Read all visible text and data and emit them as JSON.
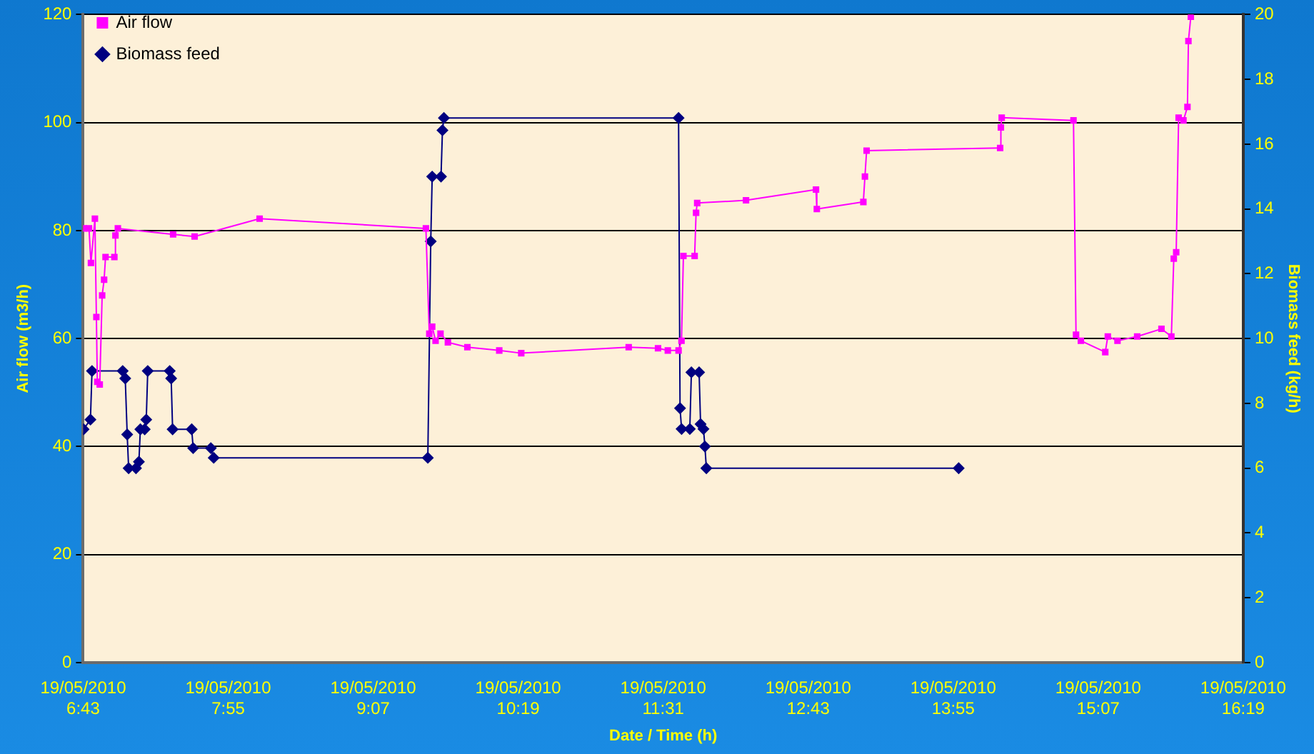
{
  "chart_data": {
    "type": "line",
    "xlabel": "Date / Time (h)",
    "ylabel": "Air flow (m3/h)",
    "y2label": "Biomass feed (kg/h)",
    "xlim": [
      "2010-05-19T06:43",
      "2010-05-19T16:19"
    ],
    "xticks": [
      {
        "value": "2010-05-19T06:43",
        "label": "19/05/2010 6:43"
      },
      {
        "value": "2010-05-19T07:55",
        "label": "19/05/2010 7:55"
      },
      {
        "value": "2010-05-19T09:07",
        "label": "19/05/2010 9:07"
      },
      {
        "value": "2010-05-19T10:19",
        "label": "19/05/2010 10:19"
      },
      {
        "value": "2010-05-19T11:31",
        "label": "19/05/2010 11:31"
      },
      {
        "value": "2010-05-19T12:43",
        "label": "19/05/2010 12:43"
      },
      {
        "value": "2010-05-19T13:55",
        "label": "19/05/2010 13:55"
      },
      {
        "value": "2010-05-19T15:07",
        "label": "19/05/2010 15:07"
      },
      {
        "value": "2010-05-19T16:19",
        "label": "19/05/2010 16:19"
      }
    ],
    "ylim": [
      0,
      120
    ],
    "yticks": [
      0,
      20,
      40,
      60,
      80,
      100,
      120
    ],
    "y2lim": [
      0,
      20
    ],
    "y2ticks": [
      0,
      2,
      4,
      6,
      8,
      10,
      12,
      14,
      16,
      18,
      20
    ],
    "grid": "y",
    "legend": "top left",
    "series": [
      {
        "name": "Air flow",
        "color": "#ff00ff",
        "marker": "square",
        "axis": "y",
        "x": [
          "2010-05-19T06:43:12",
          "2010-05-19T06:45:54",
          "2010-05-19T06:46:52",
          "2010-05-19T06:48:50",
          "2010-05-19T06:49:34",
          "2010-05-19T06:50:02",
          "2010-05-19T06:51:14",
          "2010-05-19T06:52:26",
          "2010-05-19T06:53:24",
          "2010-05-19T06:54:07",
          "2010-05-19T06:58:30",
          "2010-05-19T06:59:02",
          "2010-05-19T07:00:14",
          "2010-05-19T07:27:40",
          "2010-05-19T07:38:20",
          "2010-05-19T08:10:37",
          "2010-05-19T09:33:11",
          "2010-05-19T09:34:52",
          "2010-05-19T09:36:18",
          "2010-05-19T09:37:59",
          "2010-05-19T09:40:26",
          "2010-05-19T09:44:06",
          "2010-05-19T09:53:46",
          "2010-05-19T10:09:36",
          "2010-05-19T10:20:31",
          "2010-05-19T11:13:52",
          "2010-05-19T11:28:26",
          "2010-05-19T11:33:18",
          "2010-05-19T11:38:38",
          "2010-05-19T11:40:05",
          "2010-05-19T11:41:02",
          "2010-05-19T11:46:37",
          "2010-05-19T11:47:20",
          "2010-05-19T11:47:53",
          "2010-05-19T12:12:07",
          "2010-05-19T12:46:52",
          "2010-05-19T12:47:17",
          "2010-05-19T13:10:23",
          "2010-05-19T13:11:10",
          "2010-05-19T13:12:00",
          "2010-05-19T14:18:18",
          "2010-05-19T14:18:40",
          "2010-05-19T14:19:05",
          "2010-05-19T14:54:43",
          "2010-05-19T14:55:59",
          "2010-05-19T14:58:23",
          "2010-05-19T15:10:30",
          "2010-05-19T15:11:46",
          "2010-05-19T15:16:34",
          "2010-05-19T15:26:20",
          "2010-05-19T15:38:24",
          "2010-05-19T15:43:19",
          "2010-05-19T15:44:31",
          "2010-05-19T15:45:43",
          "2010-05-19T15:46:55",
          "2010-05-19T15:49:19",
          "2010-05-19T15:51:18",
          "2010-05-19T15:51:47",
          "2010-05-19T15:52:59"
        ],
        "values": [
          80.4,
          80.4,
          74.0,
          82.2,
          64,
          52,
          51.5,
          68,
          70.9,
          75.1,
          75.1,
          79.1,
          80.4,
          79.3,
          78.9,
          82.2,
          80.4,
          60.9,
          62.2,
          59.6,
          60.9,
          59.3,
          58.4,
          57.8,
          57.3,
          58.4,
          58.2,
          57.8,
          57.8,
          59.6,
          75.3,
          75.3,
          83.3,
          85.1,
          85.6,
          87.6,
          84.0,
          85.3,
          90.0,
          94.8,
          95.3,
          99.1,
          100.9,
          100.4,
          60.7,
          59.6,
          57.5,
          60.4,
          59.6,
          60.4,
          61.8,
          60.4,
          74.8,
          76.0,
          100.9,
          100.4,
          102.9,
          115.1,
          119.6
        ]
      },
      {
        "name": "Biomass feed",
        "color": "#000080",
        "marker": "diamond",
        "axis": "y2",
        "x": [
          "2010-05-19T06:43:12",
          "2010-05-19T06:46:37",
          "2010-05-19T06:47:24",
          "2010-05-19T07:02:38",
          "2010-05-19T07:03:54",
          "2010-05-19T07:04:52",
          "2010-05-19T07:05:35",
          "2010-05-19T07:09:14",
          "2010-05-19T07:10:41",
          "2010-05-19T07:11:24",
          "2010-05-19T07:13:34",
          "2010-05-19T07:14:20",
          "2010-05-19T07:15:04",
          "2010-05-19T07:25:59",
          "2010-05-19T07:26:42",
          "2010-05-19T07:27:25",
          "2010-05-19T07:36:54",
          "2010-05-19T07:37:37",
          "2010-05-19T07:46:23",
          "2010-05-19T07:47:49",
          "2010-05-19T09:34:08",
          "2010-05-19T09:35:35",
          "2010-05-19T09:36:18",
          "2010-05-19T09:40:41",
          "2010-05-19T09:41:24",
          "2010-05-19T09:42:07",
          "2010-05-19T11:38:38",
          "2010-05-19T11:39:22",
          "2010-05-19T11:40:08",
          "2010-05-19T11:44:13",
          "2010-05-19T11:45:00",
          "2010-05-19T11:48:50",
          "2010-05-19T11:49:34",
          "2010-05-19T11:51:00",
          "2010-05-19T11:51:43",
          "2010-05-19T11:52:26",
          "2010-05-19T13:57:43"
        ],
        "values": [
          7.2,
          7.5,
          9.0,
          9.0,
          8.77,
          7.04,
          6.0,
          6.0,
          6.2,
          7.2,
          7.2,
          7.5,
          9.0,
          9.0,
          8.77,
          7.2,
          7.2,
          6.62,
          6.62,
          6.32,
          6.32,
          13.0,
          15.0,
          15.0,
          16.43,
          16.81,
          16.81,
          7.85,
          7.21,
          7.21,
          8.96,
          8.96,
          7.36,
          7.21,
          6.67,
          6.0,
          6.0
        ]
      }
    ]
  }
}
